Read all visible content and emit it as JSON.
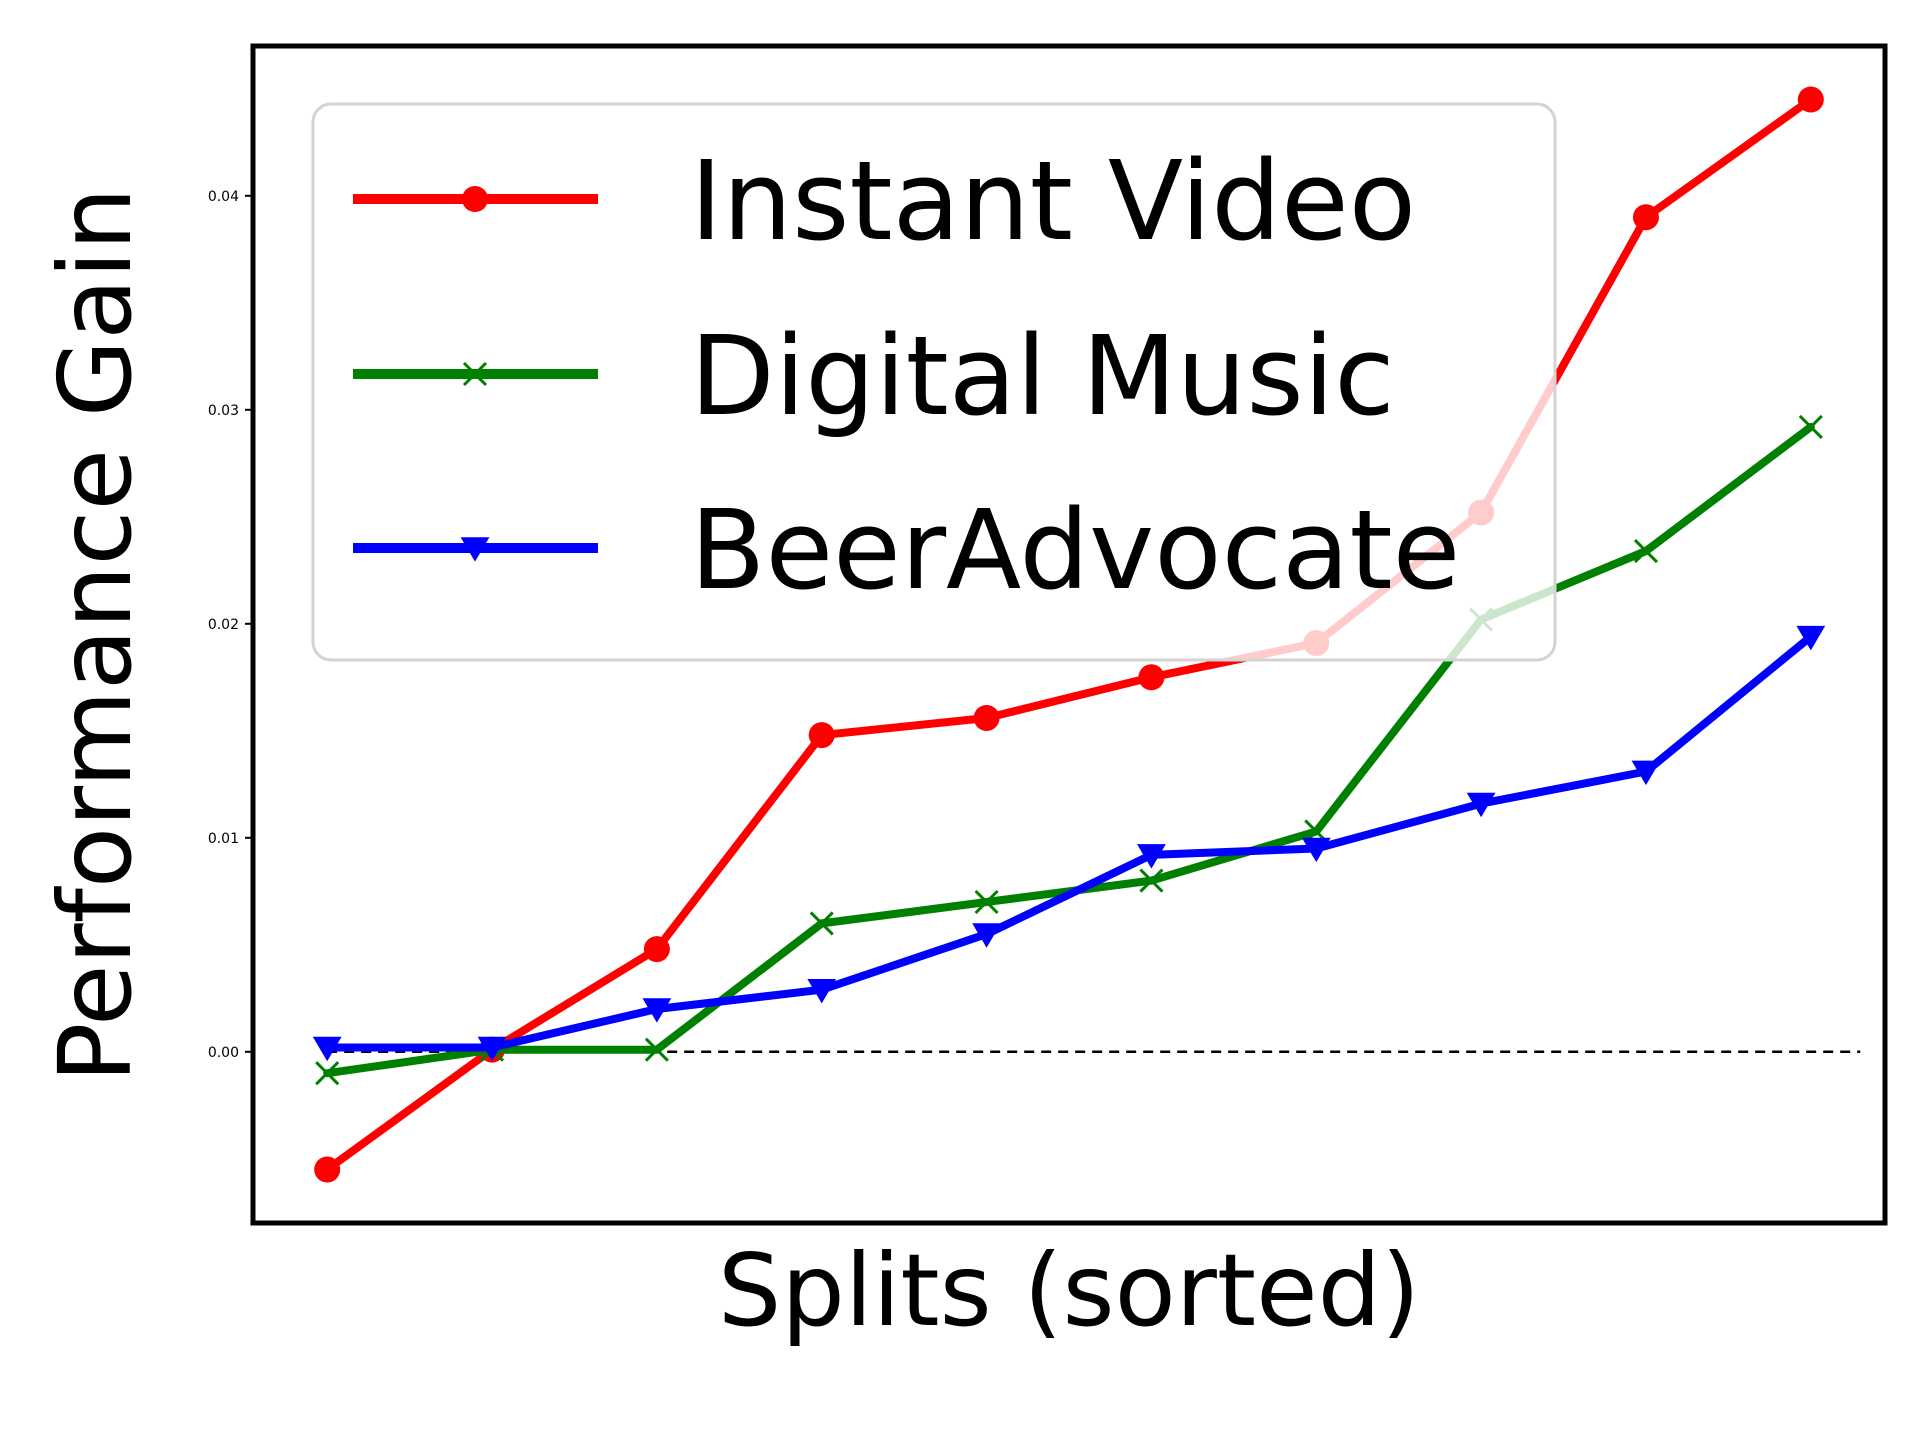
{
  "chart_data": {
    "type": "line",
    "title": "",
    "xlabel": "Splits (sorted)",
    "ylabel": "Performance Gain",
    "x": [
      1,
      2,
      3,
      4,
      5,
      6,
      7,
      8,
      9,
      10
    ],
    "ylim": [
      -0.008,
      0.047
    ],
    "yticks": [
      0.0,
      0.01,
      0.02,
      0.03,
      0.04
    ],
    "ytick_labels": [
      "0.00",
      "0.01",
      "0.02",
      "0.03",
      "0.04"
    ],
    "xticks_visible": false,
    "grid": false,
    "legend_position": "upper-left",
    "reference_line": {
      "y": 0.0,
      "style": "dashed",
      "color": "#000000"
    },
    "series": [
      {
        "name": "Instant Video",
        "color": "#ff0000",
        "marker": "circle",
        "values": [
          -0.0055,
          0.0001,
          0.0048,
          0.0148,
          0.0156,
          0.0175,
          0.0191,
          0.0252,
          0.039,
          0.0445
        ]
      },
      {
        "name": "Digital Music",
        "color": "#008000",
        "marker": "x",
        "values": [
          -0.001,
          0.0001,
          0.0001,
          0.006,
          0.007,
          0.008,
          0.0103,
          0.0202,
          0.0234,
          0.0292
        ]
      },
      {
        "name": "BeerAdvocate",
        "color": "#0000ff",
        "marker": "triangle-down",
        "values": [
          0.0002,
          0.0002,
          0.002,
          0.0029,
          0.0055,
          0.0092,
          0.0095,
          0.0116,
          0.0131,
          0.0194
        ]
      }
    ]
  }
}
